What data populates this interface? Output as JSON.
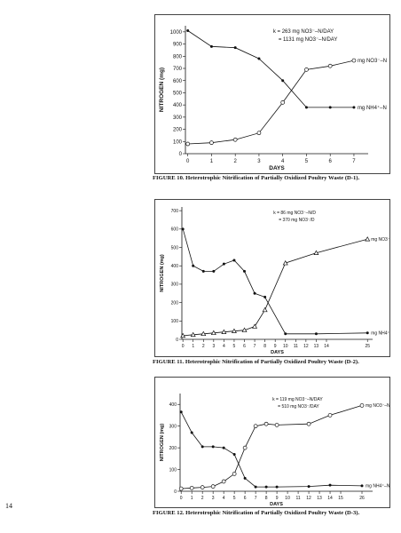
{
  "page_number": "14",
  "chart_data": [
    {
      "type": "line",
      "ylabel": "NITROGEN (mg)",
      "xlabel": "DAYS",
      "x_ticks": [
        "0",
        "1",
        "2",
        "3",
        "4",
        "5",
        "6",
        "7"
      ],
      "y_ticks": [
        "0",
        "100",
        "200",
        "300",
        "400",
        "500",
        "600",
        "700",
        "800",
        "900",
        "1000"
      ],
      "ylim": [
        0,
        1050
      ],
      "xlim": [
        -0.1,
        7.6
      ],
      "annotation": [
        "k = 263 mg NO3⁻–N/DAY",
        "= 1131 mg NO3⁻–N/DAY"
      ],
      "series": [
        {
          "name": "mg NO3⁻–N",
          "marker": "open-circle",
          "x": [
            0,
            1,
            2,
            3,
            4,
            5,
            6,
            7
          ],
          "y": [
            80,
            90,
            115,
            170,
            420,
            690,
            720,
            765
          ]
        },
        {
          "name": "mg NH4⁺–N",
          "marker": "filled-circle",
          "x": [
            0,
            1,
            2,
            3,
            4,
            5,
            6,
            7
          ],
          "y": [
            1010,
            880,
            870,
            780,
            600,
            380,
            380,
            380
          ]
        }
      ],
      "caption": "FIGURE 10.  Heterotrophic Nitrification of Partially Oxidized Poultry Waste (D-1)."
    },
    {
      "type": "line",
      "ylabel": "NITROGEN (mg)",
      "xlabel": "DAYS",
      "x_ticks": [
        "0",
        "1",
        "2",
        "3",
        "4",
        "5",
        "6",
        "7",
        "8",
        "9",
        "10",
        "11",
        "12",
        "13",
        "14",
        "25"
      ],
      "tick_positions": [
        0,
        1,
        2,
        3,
        4,
        5,
        6,
        7,
        8,
        9,
        10,
        11,
        12,
        13,
        14,
        18
      ],
      "y_ticks": [
        "0",
        "100",
        "200",
        "300",
        "400",
        "500",
        "600",
        "700"
      ],
      "ylim": [
        0,
        720
      ],
      "xlim": [
        -0.1,
        18.5
      ],
      "annotation": [
        "k = 86 mg NO3⁻–N/D",
        "= 370 mg NO3⁻/D"
      ],
      "series": [
        {
          "name": "mg NO3⁻–N",
          "marker": "open-triangle",
          "x": [
            0,
            1,
            2,
            3,
            4,
            5,
            6,
            7,
            8,
            10,
            13,
            18
          ],
          "y": [
            20,
            25,
            30,
            35,
            40,
            45,
            50,
            70,
            160,
            415,
            470,
            545
          ]
        },
        {
          "name": "mg NH4⁺–N",
          "marker": "filled-circle",
          "x": [
            0,
            1,
            2,
            3,
            4,
            5,
            6,
            7,
            8,
            10,
            13,
            18
          ],
          "y": [
            600,
            400,
            370,
            370,
            410,
            430,
            370,
            250,
            230,
            30,
            30,
            35
          ]
        }
      ],
      "caption": "FIGURE 11.  Heterotrophic Nitrification of Partially Oxidized Poultry Waste (D-2)."
    },
    {
      "type": "line",
      "ylabel": "NITROGEN (mg)",
      "xlabel": "DAYS",
      "x_ticks": [
        "0",
        "1",
        "2",
        "3",
        "4",
        "5",
        "6",
        "7",
        "8",
        "9",
        "10",
        "11",
        "12",
        "13",
        "14",
        "15",
        "26"
      ],
      "tick_positions": [
        0,
        1,
        2,
        3,
        4,
        5,
        6,
        7,
        8,
        9,
        10,
        11,
        12,
        13,
        14,
        15,
        17
      ],
      "y_ticks": [
        "0",
        "100",
        "200",
        "300",
        "400"
      ],
      "ylim": [
        0,
        450
      ],
      "xlim": [
        -0.1,
        18
      ],
      "annotation": [
        "k = 119 mg NO3⁻–N/DAY",
        "= 510 mg NO3⁻/DAY"
      ],
      "series": [
        {
          "name": "mg NO3⁻–N",
          "marker": "open-circle",
          "x": [
            0,
            1,
            2,
            3,
            4,
            5,
            6,
            7,
            8,
            9,
            12,
            14,
            17
          ],
          "y": [
            12,
            15,
            18,
            22,
            45,
            80,
            200,
            300,
            310,
            305,
            310,
            350,
            395
          ]
        },
        {
          "name": "mg NH4⁺–N",
          "marker": "filled-circle",
          "x": [
            0,
            1,
            2,
            3,
            4,
            5,
            6,
            7,
            8,
            9,
            12,
            14,
            17
          ],
          "y": [
            365,
            270,
            205,
            205,
            200,
            170,
            60,
            20,
            20,
            20,
            22,
            28,
            25
          ]
        }
      ],
      "caption": "FIGURE 12.  Heterotrophic Nitrification of Partially Oxidized Poultry Waste (D-3)."
    }
  ]
}
